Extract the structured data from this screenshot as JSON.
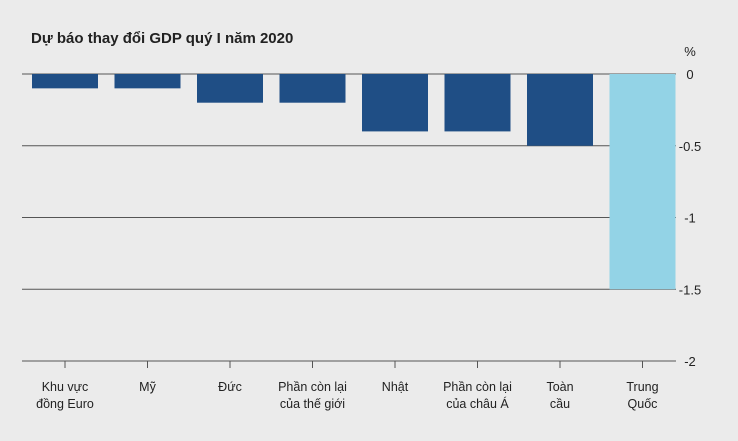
{
  "chart_data": {
    "type": "bar",
    "title": "Dự báo thay đổi GDP quý I năm 2020",
    "unit": "%",
    "categories": [
      [
        "Khu vực",
        "đồng Euro"
      ],
      [
        "Mỹ"
      ],
      [
        "Đức"
      ],
      [
        "Phần còn lại",
        "của thế giới"
      ],
      [
        "Nhật"
      ],
      [
        "Phần còn lại",
        "của châu Á"
      ],
      [
        "Toàn",
        "cầu"
      ],
      [
        "Trung",
        "Quốc"
      ]
    ],
    "values": [
      -0.1,
      -0.1,
      -0.2,
      -0.2,
      -0.4,
      -0.4,
      -0.5,
      -1.5
    ],
    "ylim": [
      -2,
      0
    ],
    "yticks": [
      {
        "value": 0,
        "label": "0"
      },
      {
        "value": -0.5,
        "label": "-0.5"
      },
      {
        "value": -1,
        "label": "-1"
      },
      {
        "value": -1.5,
        "label": "-1.5"
      },
      {
        "value": -2,
        "label": "-2"
      }
    ],
    "grid": true,
    "colors": {
      "default": "#1f4e85",
      "highlight": "#93d3e6",
      "grid": "#555555",
      "background": "#ebebeb"
    },
    "highlight_index": 7
  }
}
